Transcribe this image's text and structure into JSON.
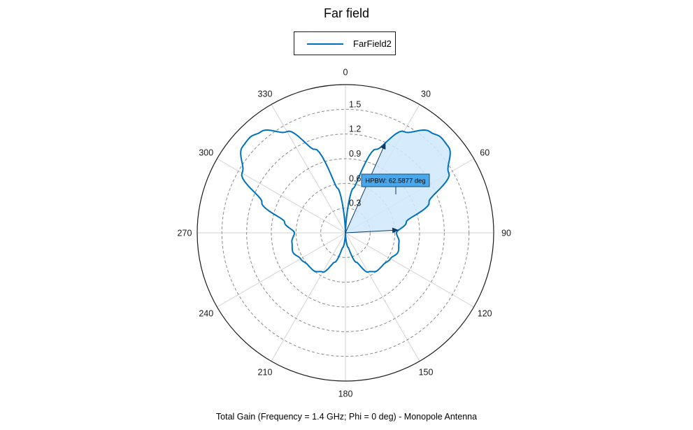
{
  "chart_data": {
    "type": "polar-line",
    "title": "Far field",
    "caption": "Total Gain (Frequency = 1.4 GHz; Phi = 0 deg) - Monopole Antenna",
    "angle_ticks": [
      "0",
      "30",
      "60",
      "90",
      "120",
      "150",
      "180",
      "210",
      "240",
      "270",
      "300",
      "330"
    ],
    "angle_direction": "clockwise",
    "zero_location": "top",
    "radial_ticks": [
      "0.3",
      "0.6",
      "0.9",
      "1.2",
      "1.5"
    ],
    "radial_tick_values": [
      0.3,
      0.6,
      0.9,
      1.2,
      1.5
    ],
    "rlim": [
      0,
      1.8
    ],
    "grid": true,
    "legend_position": "top-center",
    "series": [
      {
        "name": "FarField2",
        "color": "#0072BD",
        "theta_deg": [
          0,
          10,
          20,
          30,
          40,
          45,
          50,
          60,
          70,
          80,
          90,
          100,
          110,
          120,
          130,
          140,
          150,
          160,
          170,
          180
        ],
        "r": [
          0.0,
          0.55,
          1.08,
          1.42,
          1.6,
          1.64,
          1.63,
          1.45,
          1.08,
          0.75,
          0.62,
          0.66,
          0.68,
          0.63,
          0.6,
          0.6,
          0.55,
          0.38,
          0.18,
          0.0
        ],
        "symmetric_about_vertical": true
      }
    ],
    "annotation": {
      "text": "HPBW: 62.5877 deg",
      "shaded_from_deg": 24,
      "shaded_to_deg": 87,
      "fill_color": "#cfe8fa"
    }
  }
}
